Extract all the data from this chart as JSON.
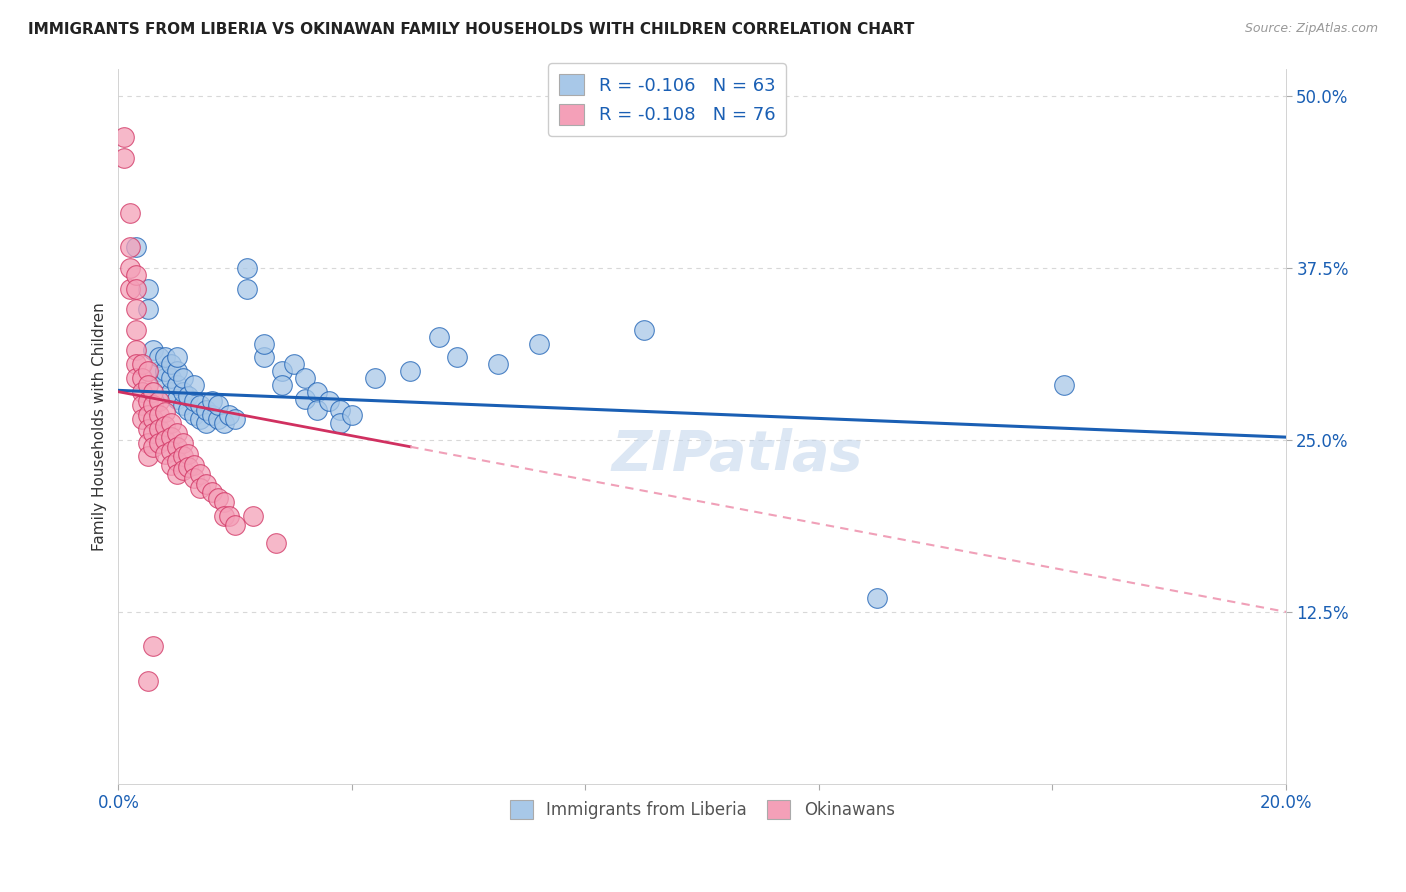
{
  "title": "IMMIGRANTS FROM LIBERIA VS OKINAWAN FAMILY HOUSEHOLDS WITH CHILDREN CORRELATION CHART",
  "source": "Source: ZipAtlas.com",
  "ylabel": "Family Households with Children",
  "legend_label1": "Immigrants from Liberia",
  "legend_label2": "Okinawans",
  "r1": -0.106,
  "n1": 63,
  "r2": -0.108,
  "n2": 76,
  "xlim": [
    0.0,
    0.2
  ],
  "ylim": [
    0.0,
    0.52
  ],
  "yticks": [
    0.125,
    0.25,
    0.375,
    0.5
  ],
  "ytick_labels": [
    "12.5%",
    "25.0%",
    "37.5%",
    "50.0%"
  ],
  "xticks": [
    0.0,
    0.04,
    0.08,
    0.12,
    0.16,
    0.2
  ],
  "xtick_labels": [
    "0.0%",
    "",
    "",
    "",
    "",
    "20.0%"
  ],
  "color_blue": "#a8c8e8",
  "color_pink": "#f4a0b8",
  "line_blue": "#1a5fb4",
  "line_pink": "#d03060",
  "line_pink_dash": "#f0a0b8",
  "background_color": "#ffffff",
  "grid_color": "#d8d8d8",
  "blue_scatter": [
    [
      0.003,
      0.39
    ],
    [
      0.005,
      0.36
    ],
    [
      0.005,
      0.345
    ],
    [
      0.006,
      0.315
    ],
    [
      0.007,
      0.3
    ],
    [
      0.007,
      0.31
    ],
    [
      0.008,
      0.295
    ],
    [
      0.008,
      0.3
    ],
    [
      0.008,
      0.31
    ],
    [
      0.009,
      0.285
    ],
    [
      0.009,
      0.295
    ],
    [
      0.009,
      0.305
    ],
    [
      0.01,
      0.28
    ],
    [
      0.01,
      0.29
    ],
    [
      0.01,
      0.3
    ],
    [
      0.01,
      0.31
    ],
    [
      0.011,
      0.275
    ],
    [
      0.011,
      0.285
    ],
    [
      0.011,
      0.295
    ],
    [
      0.012,
      0.272
    ],
    [
      0.012,
      0.282
    ],
    [
      0.013,
      0.268
    ],
    [
      0.013,
      0.278
    ],
    [
      0.013,
      0.29
    ],
    [
      0.014,
      0.265
    ],
    [
      0.014,
      0.275
    ],
    [
      0.015,
      0.262
    ],
    [
      0.015,
      0.272
    ],
    [
      0.016,
      0.268
    ],
    [
      0.016,
      0.278
    ],
    [
      0.017,
      0.265
    ],
    [
      0.017,
      0.275
    ],
    [
      0.018,
      0.262
    ],
    [
      0.019,
      0.268
    ],
    [
      0.02,
      0.265
    ],
    [
      0.022,
      0.375
    ],
    [
      0.022,
      0.36
    ],
    [
      0.025,
      0.31
    ],
    [
      0.025,
      0.32
    ],
    [
      0.028,
      0.3
    ],
    [
      0.028,
      0.29
    ],
    [
      0.03,
      0.305
    ],
    [
      0.032,
      0.295
    ],
    [
      0.032,
      0.28
    ],
    [
      0.034,
      0.285
    ],
    [
      0.034,
      0.272
    ],
    [
      0.036,
      0.278
    ],
    [
      0.038,
      0.272
    ],
    [
      0.038,
      0.262
    ],
    [
      0.04,
      0.268
    ],
    [
      0.044,
      0.295
    ],
    [
      0.05,
      0.3
    ],
    [
      0.055,
      0.325
    ],
    [
      0.058,
      0.31
    ],
    [
      0.065,
      0.305
    ],
    [
      0.072,
      0.32
    ],
    [
      0.09,
      0.33
    ],
    [
      0.13,
      0.135
    ],
    [
      0.162,
      0.29
    ]
  ],
  "pink_scatter": [
    [
      0.001,
      0.47
    ],
    [
      0.001,
      0.455
    ],
    [
      0.002,
      0.415
    ],
    [
      0.002,
      0.39
    ],
    [
      0.002,
      0.375
    ],
    [
      0.002,
      0.36
    ],
    [
      0.003,
      0.37
    ],
    [
      0.003,
      0.36
    ],
    [
      0.003,
      0.345
    ],
    [
      0.003,
      0.33
    ],
    [
      0.003,
      0.315
    ],
    [
      0.003,
      0.305
    ],
    [
      0.003,
      0.295
    ],
    [
      0.004,
      0.305
    ],
    [
      0.004,
      0.295
    ],
    [
      0.004,
      0.285
    ],
    [
      0.004,
      0.275
    ],
    [
      0.004,
      0.265
    ],
    [
      0.005,
      0.3
    ],
    [
      0.005,
      0.29
    ],
    [
      0.005,
      0.278
    ],
    [
      0.005,
      0.268
    ],
    [
      0.005,
      0.258
    ],
    [
      0.005,
      0.248
    ],
    [
      0.005,
      0.238
    ],
    [
      0.006,
      0.285
    ],
    [
      0.006,
      0.275
    ],
    [
      0.006,
      0.265
    ],
    [
      0.006,
      0.255
    ],
    [
      0.006,
      0.245
    ],
    [
      0.007,
      0.278
    ],
    [
      0.007,
      0.268
    ],
    [
      0.007,
      0.258
    ],
    [
      0.007,
      0.248
    ],
    [
      0.008,
      0.27
    ],
    [
      0.008,
      0.26
    ],
    [
      0.008,
      0.25
    ],
    [
      0.008,
      0.24
    ],
    [
      0.009,
      0.262
    ],
    [
      0.009,
      0.252
    ],
    [
      0.009,
      0.242
    ],
    [
      0.009,
      0.232
    ],
    [
      0.01,
      0.255
    ],
    [
      0.01,
      0.245
    ],
    [
      0.01,
      0.235
    ],
    [
      0.01,
      0.225
    ],
    [
      0.011,
      0.248
    ],
    [
      0.011,
      0.238
    ],
    [
      0.011,
      0.228
    ],
    [
      0.012,
      0.24
    ],
    [
      0.012,
      0.23
    ],
    [
      0.013,
      0.232
    ],
    [
      0.013,
      0.222
    ],
    [
      0.014,
      0.225
    ],
    [
      0.014,
      0.215
    ],
    [
      0.015,
      0.218
    ],
    [
      0.016,
      0.212
    ],
    [
      0.017,
      0.208
    ],
    [
      0.018,
      0.205
    ],
    [
      0.018,
      0.195
    ],
    [
      0.019,
      0.195
    ],
    [
      0.02,
      0.188
    ],
    [
      0.023,
      0.195
    ],
    [
      0.027,
      0.175
    ],
    [
      0.006,
      0.1
    ],
    [
      0.005,
      0.075
    ]
  ]
}
